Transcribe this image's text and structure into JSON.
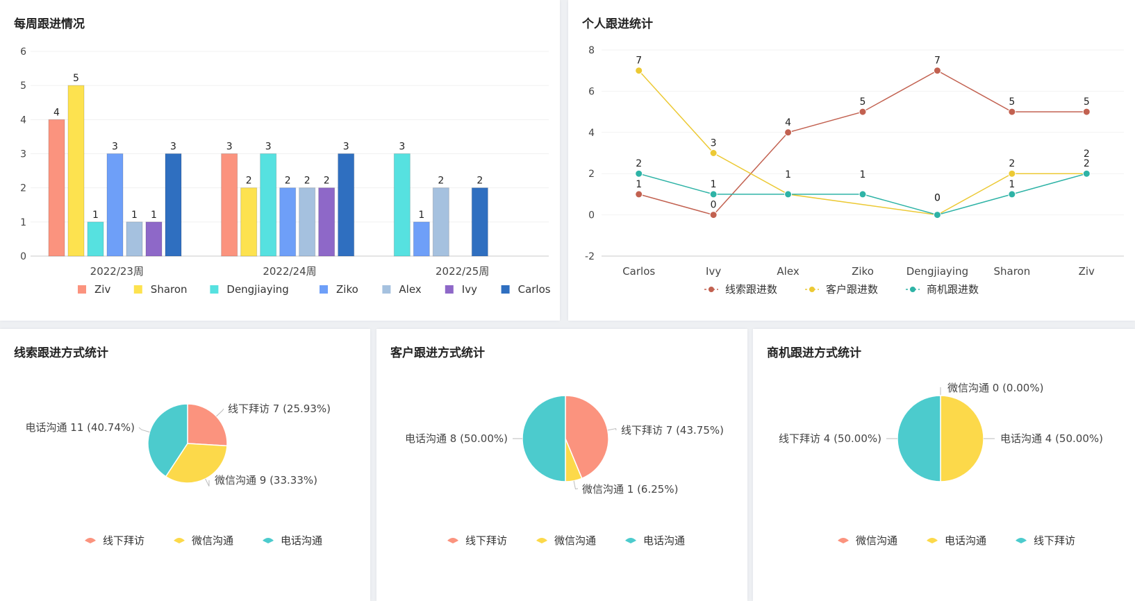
{
  "colors": {
    "Ziv": "#fb937e",
    "Sharon": "#fde24f",
    "Dengjiaying": "#56e1e0",
    "Ziko": "#6e9ff8",
    "Alex": "#a5c1df",
    "Ivy": "#8e68c8",
    "Carlos": "#2f6fc0",
    "clue": "#c26150",
    "customer": "#ecc934",
    "opportunity": "#2eb3a6",
    "pie_red": "#fb937e",
    "pie_yellow": "#fcd94a",
    "pie_teal": "#4ccbcd"
  },
  "weekly": {
    "title": "每周跟进情况",
    "chart_data": {
      "type": "bar",
      "categories": [
        "2022/23周",
        "2022/24周",
        "2022/25周"
      ],
      "series": [
        {
          "name": "Ziv",
          "values": [
            4,
            3,
            null
          ]
        },
        {
          "name": "Sharon",
          "values": [
            5,
            2,
            null
          ]
        },
        {
          "name": "Dengjiaying",
          "values": [
            1,
            3,
            3
          ]
        },
        {
          "name": "Ziko",
          "values": [
            3,
            2,
            1
          ]
        },
        {
          "name": "Alex",
          "values": [
            1,
            2,
            2
          ]
        },
        {
          "name": "Ivy",
          "values": [
            1,
            2,
            null
          ]
        },
        {
          "name": "Carlos",
          "values": [
            3,
            3,
            2
          ]
        }
      ],
      "y_ticks": [
        "0",
        "1",
        "2",
        "3",
        "4",
        "5",
        "6"
      ],
      "ylim": [
        0,
        6
      ],
      "legend_position": "bottom"
    }
  },
  "personal": {
    "title": "个人跟进统计",
    "chart_data": {
      "type": "line",
      "categories": [
        "Carlos",
        "Ivy",
        "Alex",
        "Ziko",
        "Dengjiaying",
        "Sharon",
        "Ziv"
      ],
      "series": [
        {
          "name": "线索跟进数",
          "key": "clue",
          "values": [
            1,
            0,
            4,
            5,
            7,
            5,
            5
          ]
        },
        {
          "name": "客户跟进数",
          "key": "customer",
          "values": [
            7,
            3,
            1,
            null,
            0,
            2,
            2
          ]
        },
        {
          "name": "商机跟进数",
          "key": "opportunity",
          "values": [
            2,
            1,
            1,
            1,
            0,
            1,
            2
          ]
        }
      ],
      "y_ticks": [
        "-2",
        "0",
        "2",
        "4",
        "6",
        "8"
      ],
      "ylim": [
        -2,
        8
      ],
      "legend_position": "bottom"
    }
  },
  "clue_pie": {
    "title": "线索跟进方式统计",
    "chart_data": {
      "type": "pie",
      "slices": [
        {
          "label": "线下拜访 7 (25.93%)",
          "name": "线下拜访",
          "value": 7,
          "color": "pie_red"
        },
        {
          "label": "微信沟通 9 (33.33%)",
          "name": "微信沟通",
          "value": 9,
          "color": "pie_yellow"
        },
        {
          "label": "电话沟通 11 (40.74%)",
          "name": "电话沟通",
          "value": 11,
          "color": "pie_teal"
        }
      ],
      "legend": [
        "线下拜访",
        "微信沟通",
        "电话沟通"
      ]
    }
  },
  "customer_pie": {
    "title": "客户跟进方式统计",
    "chart_data": {
      "type": "pie",
      "slices": [
        {
          "label": "线下拜访 7 (43.75%)",
          "name": "线下拜访",
          "value": 7,
          "color": "pie_red"
        },
        {
          "label": "微信沟通 1 (6.25%)",
          "name": "微信沟通",
          "value": 1,
          "color": "pie_yellow"
        },
        {
          "label": "电话沟通 8 (50.00%)",
          "name": "电话沟通",
          "value": 8,
          "color": "pie_teal"
        }
      ],
      "legend": [
        "线下拜访",
        "微信沟通",
        "电话沟通"
      ]
    }
  },
  "opportunity_pie": {
    "title": "商机跟进方式统计",
    "chart_data": {
      "type": "pie",
      "slices": [
        {
          "label": "微信沟通 0 (0.00%)",
          "name": "微信沟通",
          "value": 0,
          "color": "pie_red"
        },
        {
          "label": "电话沟通 4 (50.00%)",
          "name": "电话沟通",
          "value": 4,
          "color": "pie_yellow"
        },
        {
          "label": "线下拜访 4 (50.00%)",
          "name": "线下拜访",
          "value": 4,
          "color": "pie_teal"
        }
      ],
      "legend": [
        "微信沟通",
        "电话沟通",
        "线下拜访"
      ]
    }
  }
}
